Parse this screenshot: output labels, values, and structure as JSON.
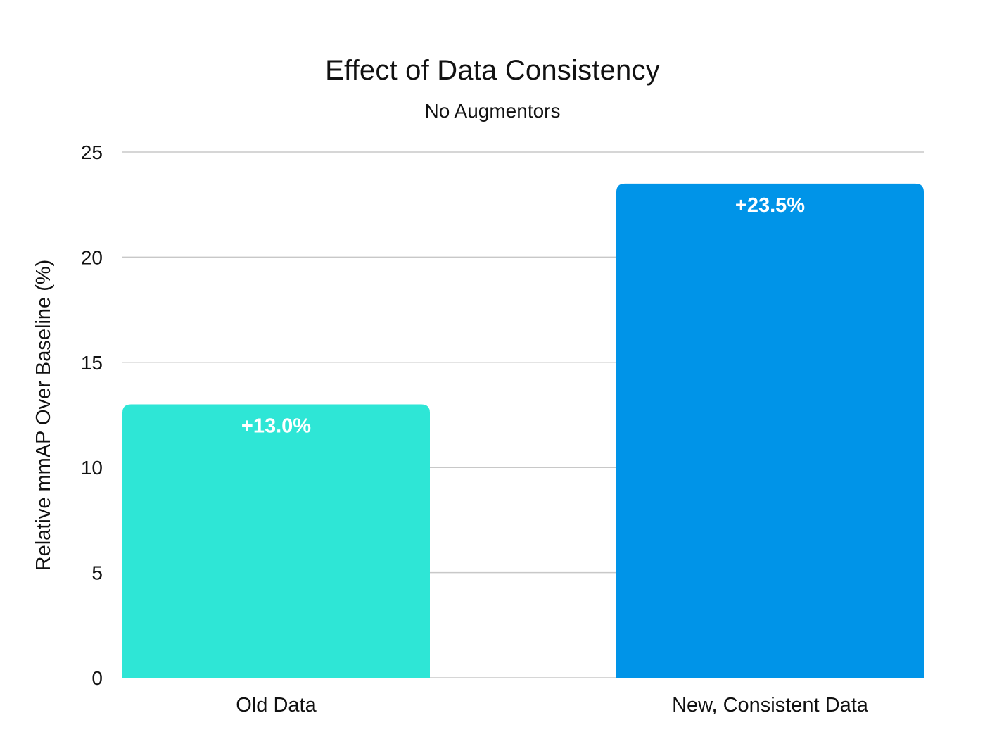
{
  "chart_data": {
    "type": "bar",
    "title": "Effect of Data Consistency",
    "subtitle": "No Augmentors",
    "ylabel": "Relative mmAP Over Baseline (%)",
    "xlabel": "",
    "categories": [
      "Old Data",
      "New, Consistent Data"
    ],
    "values": [
      13.0,
      23.5
    ],
    "data_labels": [
      "+13.0%",
      "+23.5%"
    ],
    "colors": [
      "#2ee6d6",
      "#0094e8"
    ],
    "ylim": [
      0,
      25
    ],
    "yticks": [
      0,
      5,
      10,
      15,
      20,
      25
    ],
    "grid": true,
    "gridline_color": "#c8c8c8",
    "legend": "none"
  }
}
